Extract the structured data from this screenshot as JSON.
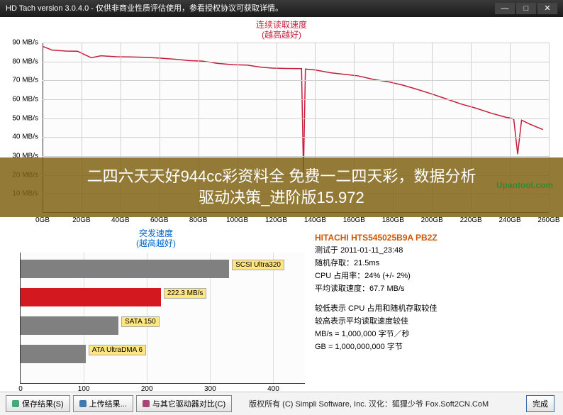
{
  "window": {
    "title": "HD Tach version 3.0.4.0  - 仅供非商业性质评估使用，参看授权协议可获取详情。"
  },
  "topchart": {
    "title_line1": "连续读取速度",
    "title_line2": "(越高越好)",
    "line_color": "#c41e3a",
    "grid_color": "#d0d0d0",
    "ymax": 90,
    "ytick": 10,
    "yunit": " MB/s",
    "xmax": 260,
    "xtick": 20,
    "xunit": "GB",
    "points": [
      [
        0,
        88
      ],
      [
        5,
        86
      ],
      [
        12,
        85.5
      ],
      [
        18,
        85.4
      ],
      [
        25,
        82
      ],
      [
        30,
        83
      ],
      [
        38,
        82.5
      ],
      [
        45,
        82.4
      ],
      [
        52,
        82.2
      ],
      [
        60,
        81.8
      ],
      [
        68,
        81.2
      ],
      [
        75,
        80.5
      ],
      [
        82,
        80.2
      ],
      [
        90,
        79
      ],
      [
        98,
        78.3
      ],
      [
        105,
        78.1
      ],
      [
        112,
        77
      ],
      [
        118,
        76.5
      ],
      [
        125,
        76.3
      ],
      [
        133,
        76.2
      ],
      [
        134,
        21
      ],
      [
        135,
        76
      ],
      [
        140,
        75.5
      ],
      [
        148,
        74
      ],
      [
        155,
        73.2
      ],
      [
        162,
        72.4
      ],
      [
        170,
        70.5
      ],
      [
        178,
        69.2
      ],
      [
        185,
        67.5
      ],
      [
        192,
        65.4
      ],
      [
        200,
        62.8
      ],
      [
        208,
        60
      ],
      [
        215,
        57.5
      ],
      [
        222,
        55.5
      ],
      [
        230,
        52.8
      ],
      [
        238,
        50.5
      ],
      [
        240,
        50.2
      ],
      [
        242,
        49.5
      ],
      [
        244,
        31
      ],
      [
        246,
        49
      ],
      [
        250,
        47
      ],
      [
        257,
        44
      ]
    ]
  },
  "overlay": {
    "line1": "二四六天天好944cc彩资料全 免费一二四天彩，数据分析",
    "line2": "驱动决策_进阶版15.972",
    "bg": "rgba(128,100,20,0.85)",
    "watermark": "Upantool.com",
    "watermark_color": "#2e8b2e"
  },
  "barchart": {
    "title_line1": "突发速度",
    "title_line2": "(越高越好)",
    "xmax": 450,
    "xtick": 100,
    "bars": [
      {
        "value": 330,
        "color": "#808080",
        "label": "SCSI Ultra320"
      },
      {
        "value": 222,
        "color": "#d41820",
        "label": "222.3 MB/s"
      },
      {
        "value": 155,
        "color": "#808080",
        "label": "SATA 150"
      },
      {
        "value": 103,
        "color": "#808080",
        "label": "ATA UltraDMA 6"
      }
    ]
  },
  "info": {
    "drive": "HITACHI HTS545025B9A PB2Z",
    "tested_label": "测试于",
    "tested_value": "2011-01-11_23:48",
    "random_label": "随机存取：",
    "random_value": "21.5ms",
    "cpu_label": "CPU 占用率：",
    "cpu_value": "24% (+/- 2%)",
    "avg_label": "平均读取速度：",
    "avg_value": "67.7 MB/s",
    "note1": "较低表示 CPU 占用和随机存取较佳",
    "note2": "较高表示平均读取速度较佳",
    "unit1": "MB/s = 1,000,000 字节／秒",
    "unit2": "GB = 1,000,000,000 字节"
  },
  "buttons": {
    "save": "保存结果(S)",
    "upload": "上传结果...",
    "compare": "与其它驱动器对比(C)",
    "done": "完成"
  },
  "copyright": "版权所有 (C) Simpli Software, Inc. 汉化：狐狸少爷 Fox.Soft2CN.CoM"
}
